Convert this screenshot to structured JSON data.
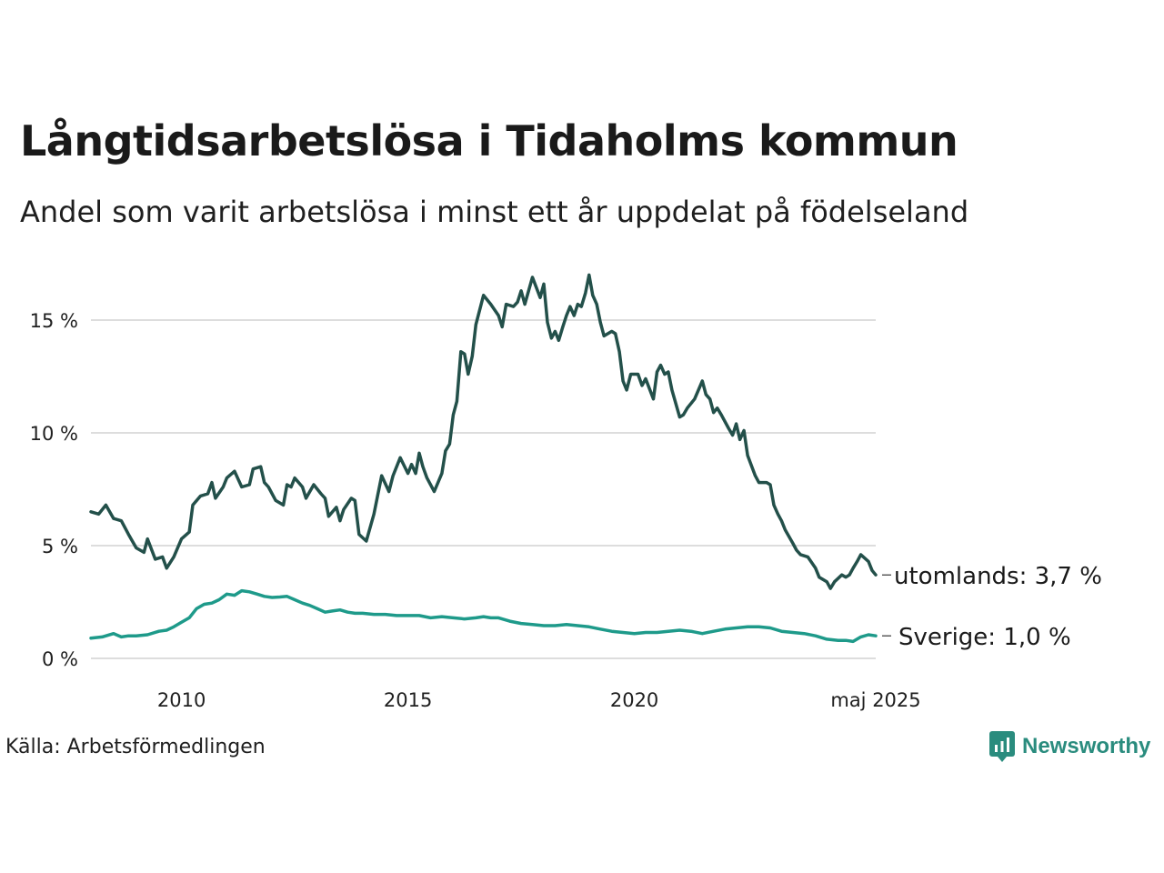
{
  "title": "Långtidsarbetslösa i Tidaholms kommun",
  "subtitle": "Andel som varit arbetslösa i minst ett år uppdelat på födelseland",
  "source": "Källa: Arbetsförmedlingen",
  "brand": "Newsworthy",
  "colors": {
    "utomlands": "#23504a",
    "sverige": "#1e9a8a",
    "grid": "#dddddd",
    "brand": "#2a8c7e"
  },
  "chart_data": {
    "type": "line",
    "ylim": [
      0,
      17.5
    ],
    "xlim": [
      2008.0,
      2025.33
    ],
    "y_ticks": [
      {
        "value": 0,
        "label": "0 %"
      },
      {
        "value": 5,
        "label": "5 %"
      },
      {
        "value": 10,
        "label": "10 %"
      },
      {
        "value": 15,
        "label": "15 %"
      }
    ],
    "x_ticks": [
      {
        "value": 2010,
        "label": "2010"
      },
      {
        "value": 2015,
        "label": "2015"
      },
      {
        "value": 2020,
        "label": "2020"
      },
      {
        "value": 2025.33,
        "label": "maj 2025"
      }
    ],
    "grid": true,
    "series": [
      {
        "key": "utomlands",
        "end_label": "utomlands: 3,7 %",
        "points": [
          [
            2008.0,
            6.5
          ],
          [
            2008.17,
            6.4
          ],
          [
            2008.33,
            6.8
          ],
          [
            2008.5,
            6.2
          ],
          [
            2008.67,
            6.1
          ],
          [
            2008.83,
            5.5
          ],
          [
            2009.0,
            4.9
          ],
          [
            2009.17,
            4.7
          ],
          [
            2009.25,
            5.3
          ],
          [
            2009.42,
            4.4
          ],
          [
            2009.58,
            4.5
          ],
          [
            2009.67,
            4.0
          ],
          [
            2009.83,
            4.5
          ],
          [
            2010.0,
            5.3
          ],
          [
            2010.17,
            5.6
          ],
          [
            2010.25,
            6.8
          ],
          [
            2010.42,
            7.2
          ],
          [
            2010.58,
            7.3
          ],
          [
            2010.67,
            7.8
          ],
          [
            2010.75,
            7.1
          ],
          [
            2010.92,
            7.6
          ],
          [
            2011.0,
            8.0
          ],
          [
            2011.17,
            8.3
          ],
          [
            2011.33,
            7.6
          ],
          [
            2011.5,
            7.7
          ],
          [
            2011.58,
            8.4
          ],
          [
            2011.75,
            8.5
          ],
          [
            2011.83,
            7.8
          ],
          [
            2011.92,
            7.6
          ],
          [
            2012.08,
            7.0
          ],
          [
            2012.25,
            6.8
          ],
          [
            2012.33,
            7.7
          ],
          [
            2012.42,
            7.6
          ],
          [
            2012.5,
            8.0
          ],
          [
            2012.67,
            7.6
          ],
          [
            2012.75,
            7.1
          ],
          [
            2012.92,
            7.7
          ],
          [
            2013.08,
            7.3
          ],
          [
            2013.17,
            7.1
          ],
          [
            2013.25,
            6.3
          ],
          [
            2013.42,
            6.7
          ],
          [
            2013.5,
            6.1
          ],
          [
            2013.58,
            6.6
          ],
          [
            2013.75,
            7.1
          ],
          [
            2013.83,
            7.0
          ],
          [
            2013.92,
            5.5
          ],
          [
            2014.08,
            5.2
          ],
          [
            2014.25,
            6.4
          ],
          [
            2014.33,
            7.2
          ],
          [
            2014.42,
            8.1
          ],
          [
            2014.58,
            7.4
          ],
          [
            2014.67,
            8.1
          ],
          [
            2014.83,
            8.9
          ],
          [
            2015.0,
            8.2
          ],
          [
            2015.08,
            8.6
          ],
          [
            2015.17,
            8.2
          ],
          [
            2015.25,
            9.1
          ],
          [
            2015.33,
            8.5
          ],
          [
            2015.42,
            8.0
          ],
          [
            2015.58,
            7.4
          ],
          [
            2015.75,
            8.2
          ],
          [
            2015.83,
            9.2
          ],
          [
            2015.92,
            9.5
          ],
          [
            2016.0,
            10.8
          ],
          [
            2016.08,
            11.4
          ],
          [
            2016.17,
            13.6
          ],
          [
            2016.25,
            13.5
          ],
          [
            2016.33,
            12.6
          ],
          [
            2016.42,
            13.4
          ],
          [
            2016.5,
            14.8
          ],
          [
            2016.67,
            16.1
          ],
          [
            2016.83,
            15.7
          ],
          [
            2017.0,
            15.2
          ],
          [
            2017.08,
            14.7
          ],
          [
            2017.17,
            15.7
          ],
          [
            2017.33,
            15.6
          ],
          [
            2017.42,
            15.8
          ],
          [
            2017.5,
            16.3
          ],
          [
            2017.58,
            15.7
          ],
          [
            2017.75,
            16.9
          ],
          [
            2017.92,
            16.0
          ],
          [
            2018.0,
            16.6
          ],
          [
            2018.08,
            14.9
          ],
          [
            2018.17,
            14.2
          ],
          [
            2018.25,
            14.5
          ],
          [
            2018.33,
            14.1
          ],
          [
            2018.42,
            14.7
          ],
          [
            2018.5,
            15.2
          ],
          [
            2018.58,
            15.6
          ],
          [
            2018.67,
            15.2
          ],
          [
            2018.75,
            15.7
          ],
          [
            2018.83,
            15.6
          ],
          [
            2018.92,
            16.2
          ],
          [
            2019.0,
            17.0
          ],
          [
            2019.08,
            16.1
          ],
          [
            2019.17,
            15.7
          ],
          [
            2019.25,
            14.9
          ],
          [
            2019.33,
            14.3
          ],
          [
            2019.5,
            14.5
          ],
          [
            2019.58,
            14.4
          ],
          [
            2019.67,
            13.6
          ],
          [
            2019.75,
            12.3
          ],
          [
            2019.83,
            11.9
          ],
          [
            2019.92,
            12.6
          ],
          [
            2020.08,
            12.6
          ],
          [
            2020.17,
            12.1
          ],
          [
            2020.25,
            12.4
          ],
          [
            2020.42,
            11.5
          ],
          [
            2020.5,
            12.7
          ],
          [
            2020.58,
            13.0
          ],
          [
            2020.67,
            12.6
          ],
          [
            2020.75,
            12.7
          ],
          [
            2020.83,
            11.9
          ],
          [
            2021.0,
            10.7
          ],
          [
            2021.08,
            10.8
          ],
          [
            2021.17,
            11.1
          ],
          [
            2021.33,
            11.5
          ],
          [
            2021.5,
            12.3
          ],
          [
            2021.58,
            11.7
          ],
          [
            2021.67,
            11.5
          ],
          [
            2021.75,
            10.9
          ],
          [
            2021.83,
            11.1
          ],
          [
            2021.92,
            10.8
          ],
          [
            2022.08,
            10.2
          ],
          [
            2022.17,
            9.9
          ],
          [
            2022.25,
            10.4
          ],
          [
            2022.33,
            9.7
          ],
          [
            2022.42,
            10.1
          ],
          [
            2022.5,
            9.0
          ],
          [
            2022.67,
            8.1
          ],
          [
            2022.75,
            7.8
          ],
          [
            2022.92,
            7.8
          ],
          [
            2023.0,
            7.7
          ],
          [
            2023.08,
            6.8
          ],
          [
            2023.17,
            6.4
          ],
          [
            2023.25,
            6.1
          ],
          [
            2023.33,
            5.7
          ],
          [
            2023.5,
            5.1
          ],
          [
            2023.58,
            4.8
          ],
          [
            2023.67,
            4.6
          ],
          [
            2023.83,
            4.5
          ],
          [
            2024.0,
            4.0
          ],
          [
            2024.08,
            3.6
          ],
          [
            2024.25,
            3.4
          ],
          [
            2024.33,
            3.1
          ],
          [
            2024.42,
            3.4
          ],
          [
            2024.58,
            3.7
          ],
          [
            2024.67,
            3.6
          ],
          [
            2024.75,
            3.7
          ],
          [
            2024.83,
            4.0
          ],
          [
            2024.92,
            4.3
          ],
          [
            2025.0,
            4.6
          ],
          [
            2025.17,
            4.3
          ],
          [
            2025.25,
            3.9
          ],
          [
            2025.33,
            3.7
          ]
        ]
      },
      {
        "key": "sverige",
        "end_label": "Sverige: 1,0 %",
        "points": [
          [
            2008.0,
            0.9
          ],
          [
            2008.25,
            0.95
          ],
          [
            2008.5,
            1.1
          ],
          [
            2008.67,
            0.95
          ],
          [
            2008.83,
            1.0
          ],
          [
            2009.0,
            1.0
          ],
          [
            2009.25,
            1.05
          ],
          [
            2009.5,
            1.2
          ],
          [
            2009.67,
            1.25
          ],
          [
            2009.83,
            1.4
          ],
          [
            2010.0,
            1.6
          ],
          [
            2010.17,
            1.8
          ],
          [
            2010.33,
            2.2
          ],
          [
            2010.5,
            2.4
          ],
          [
            2010.67,
            2.45
          ],
          [
            2010.83,
            2.6
          ],
          [
            2011.0,
            2.85
          ],
          [
            2011.17,
            2.8
          ],
          [
            2011.33,
            3.0
          ],
          [
            2011.5,
            2.95
          ],
          [
            2011.67,
            2.85
          ],
          [
            2011.83,
            2.75
          ],
          [
            2012.0,
            2.7
          ],
          [
            2012.17,
            2.72
          ],
          [
            2012.33,
            2.75
          ],
          [
            2012.5,
            2.6
          ],
          [
            2012.67,
            2.45
          ],
          [
            2012.83,
            2.35
          ],
          [
            2013.0,
            2.2
          ],
          [
            2013.17,
            2.05
          ],
          [
            2013.33,
            2.1
          ],
          [
            2013.5,
            2.15
          ],
          [
            2013.67,
            2.05
          ],
          [
            2013.83,
            2.0
          ],
          [
            2014.0,
            2.0
          ],
          [
            2014.25,
            1.95
          ],
          [
            2014.5,
            1.95
          ],
          [
            2014.75,
            1.9
          ],
          [
            2015.0,
            1.9
          ],
          [
            2015.25,
            1.9
          ],
          [
            2015.5,
            1.8
          ],
          [
            2015.75,
            1.85
          ],
          [
            2016.0,
            1.8
          ],
          [
            2016.25,
            1.75
          ],
          [
            2016.5,
            1.8
          ],
          [
            2016.67,
            1.85
          ],
          [
            2016.83,
            1.8
          ],
          [
            2017.0,
            1.8
          ],
          [
            2017.25,
            1.65
          ],
          [
            2017.5,
            1.55
          ],
          [
            2017.75,
            1.5
          ],
          [
            2018.0,
            1.45
          ],
          [
            2018.25,
            1.45
          ],
          [
            2018.5,
            1.5
          ],
          [
            2018.75,
            1.45
          ],
          [
            2019.0,
            1.4
          ],
          [
            2019.25,
            1.3
          ],
          [
            2019.5,
            1.2
          ],
          [
            2019.75,
            1.15
          ],
          [
            2020.0,
            1.1
          ],
          [
            2020.25,
            1.15
          ],
          [
            2020.5,
            1.15
          ],
          [
            2020.75,
            1.2
          ],
          [
            2021.0,
            1.25
          ],
          [
            2021.25,
            1.2
          ],
          [
            2021.5,
            1.1
          ],
          [
            2021.75,
            1.2
          ],
          [
            2022.0,
            1.3
          ],
          [
            2022.25,
            1.35
          ],
          [
            2022.5,
            1.4
          ],
          [
            2022.75,
            1.4
          ],
          [
            2023.0,
            1.35
          ],
          [
            2023.25,
            1.2
          ],
          [
            2023.5,
            1.15
          ],
          [
            2023.75,
            1.1
          ],
          [
            2024.0,
            1.0
          ],
          [
            2024.25,
            0.85
          ],
          [
            2024.5,
            0.8
          ],
          [
            2024.67,
            0.8
          ],
          [
            2024.83,
            0.75
          ],
          [
            2025.0,
            0.95
          ],
          [
            2025.17,
            1.05
          ],
          [
            2025.33,
            1.0
          ]
        ]
      }
    ]
  }
}
